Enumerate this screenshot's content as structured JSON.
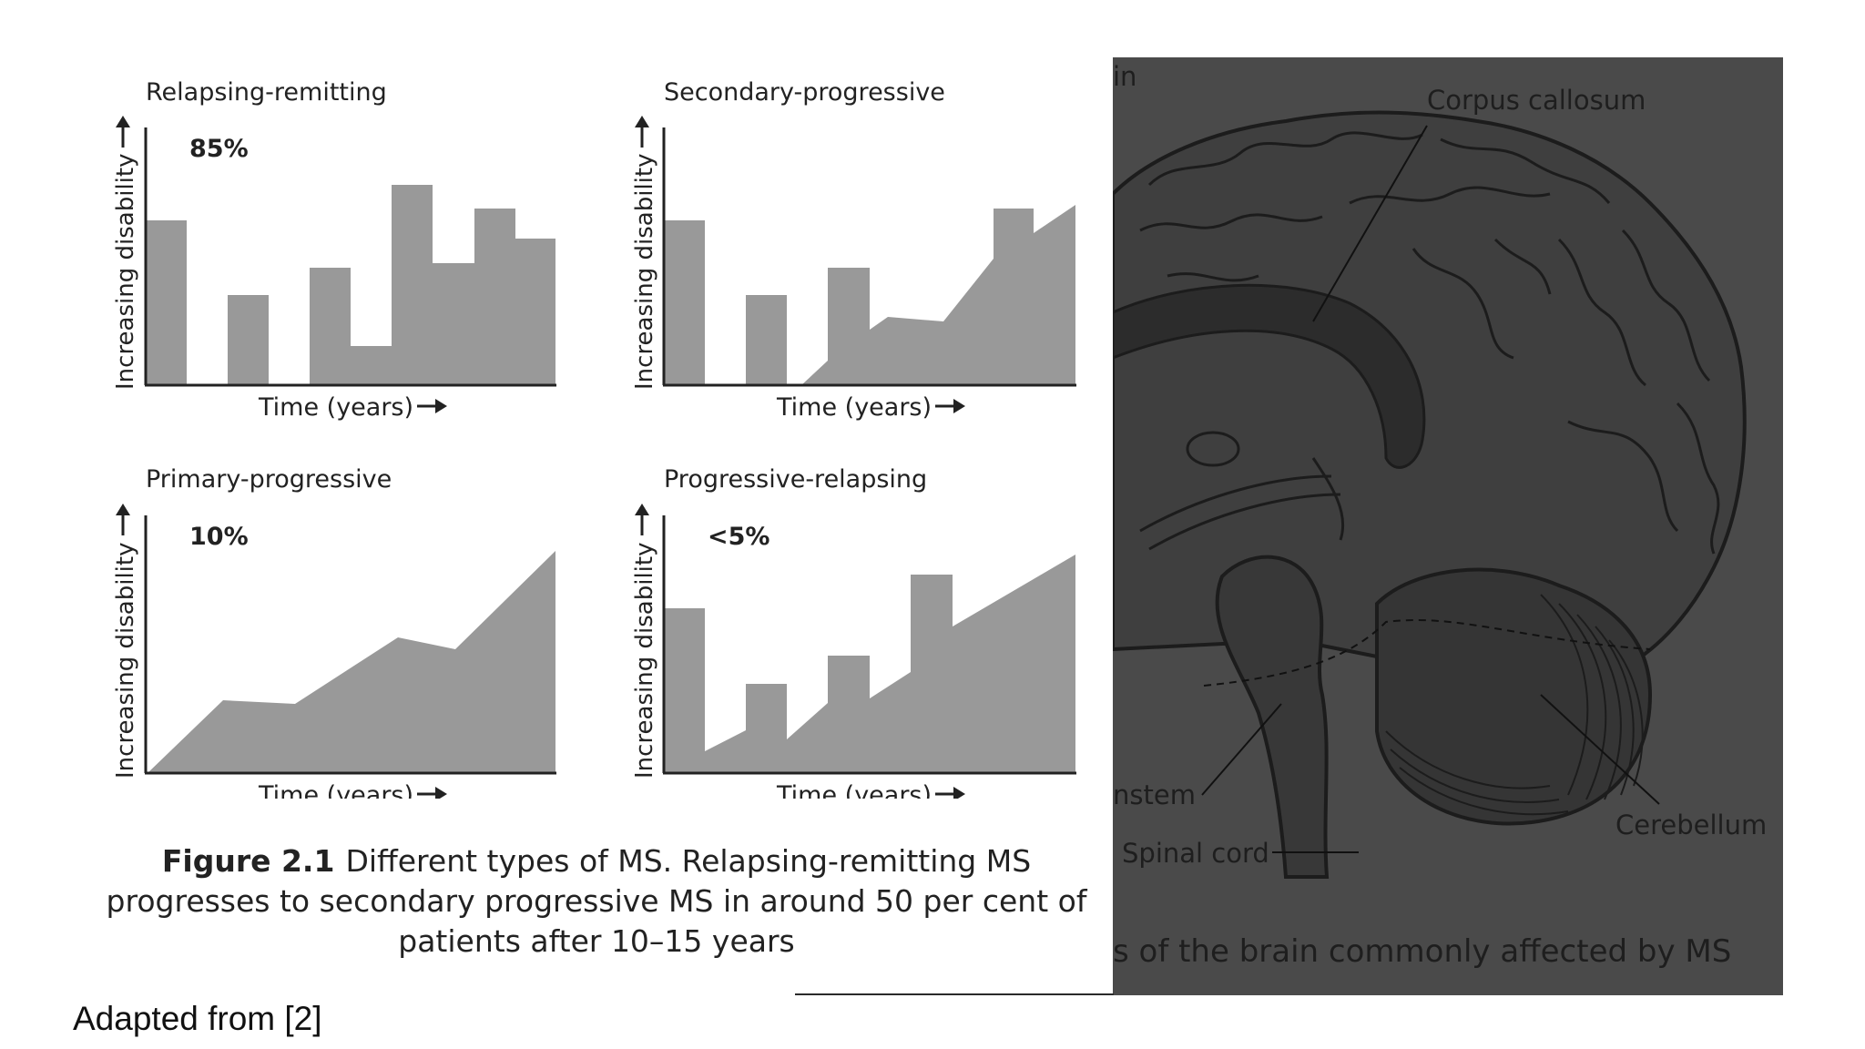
{
  "panels": [
    {
      "title": "Relapsing-remitting",
      "percent": "85%",
      "ylabel": "Increasing disability",
      "xlabel": "Time (years)"
    },
    {
      "title": "Secondary-progressive",
      "percent": "",
      "ylabel": "Increasing disability",
      "xlabel": "Time (years)"
    },
    {
      "title": "Primary-progressive",
      "percent": "10%",
      "ylabel": "Increasing disability",
      "xlabel": "Time (years)"
    },
    {
      "title": "Progressive-relapsing",
      "percent": "<5%",
      "ylabel": "Increasing disability",
      "xlabel": "Time (years)"
    }
  ],
  "caption": {
    "label": "Figure 2.1",
    "text": "Different types of MS. Relapsing-remitting MS progresses to secondary progressive MS in around 50 per cent of patients after 10–15 years"
  },
  "brain": {
    "title_fragment": "in",
    "labels": {
      "corpus_callosum": "Corpus callosum",
      "cerebellum": "Cerebellum",
      "brainstem": "nstem",
      "spinal_cord": "Spinal cord"
    },
    "caption_fragment": "s of the brain commonly affected by MS"
  },
  "credit": "Adapted from [2]",
  "colors": {
    "fill": "#999999",
    "axis": "#222222",
    "brain_panel": "#4a4a4a"
  }
}
